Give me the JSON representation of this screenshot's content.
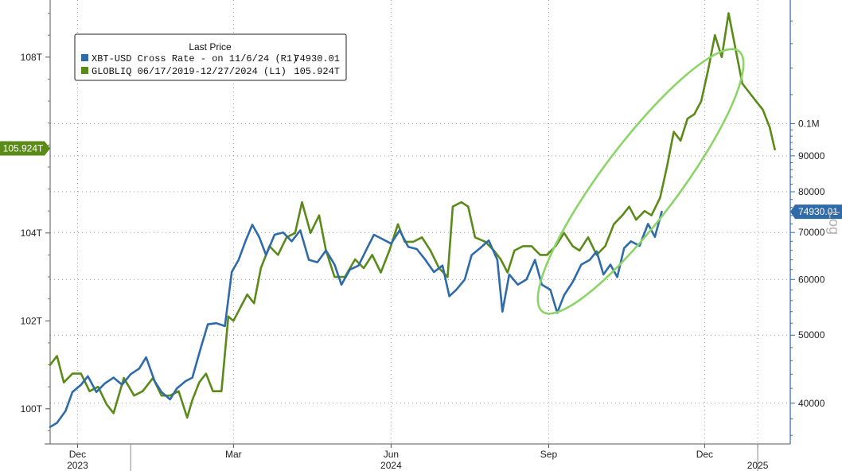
{
  "chart_data": {
    "type": "line",
    "legend": {
      "title": "Last Price",
      "placement": "top-left",
      "entries": [
        {
          "label": "XBT-USD Cross Rate -  on 11/6/24  (R1)",
          "value": "74930.01",
          "color": "#2f6ba8"
        },
        {
          "label": "GLOBLIQ 06/17/2019-12/27/2024   (L1)",
          "value": "105.924T",
          "color": "#5a8a18"
        }
      ]
    },
    "x_axis": {
      "labels": [
        {
          "month": "Dec",
          "year": "2023",
          "date": "2023-12-01"
        },
        {
          "month": "Mar",
          "year": "",
          "date": "2024-03-01"
        },
        {
          "month": "Jun",
          "year": "2024",
          "date": "2024-06-01"
        },
        {
          "month": "Sep",
          "year": "",
          "date": "2024-09-01"
        },
        {
          "month": "Dec",
          "year": "",
          "date": "2024-12-01"
        },
        {
          "month": "",
          "year": "2025",
          "date": "2025-01-01"
        }
      ],
      "range": [
        "2023-11-15",
        "2025-01-20"
      ]
    },
    "y_left": {
      "range": [
        99.2,
        109.3
      ],
      "ticks": [
        {
          "value": 100,
          "label": "100T"
        },
        {
          "value": 102,
          "label": "102T"
        },
        {
          "value": 104,
          "label": "104T"
        },
        {
          "value": 108,
          "label": "108T"
        }
      ]
    },
    "y_right": {
      "scale": "log",
      "scale_label": "Log",
      "range": [
        35000,
        150000
      ],
      "ticks": [
        {
          "value": 40000,
          "label": "40000"
        },
        {
          "value": 50000,
          "label": "50000"
        },
        {
          "value": 60000,
          "label": "60000"
        },
        {
          "value": 70000,
          "label": "70000"
        },
        {
          "value": 80000,
          "label": "80000"
        },
        {
          "value": 90000,
          "label": "90000"
        },
        {
          "value": 100000,
          "label": "0.1M"
        }
      ]
    },
    "grid": true,
    "last_value_tags": [
      {
        "series": "GLOBLIQ",
        "label": "105.924T",
        "value": 105.924,
        "axis": "left",
        "color": "#5a8a18"
      },
      {
        "series": "XBT-USD",
        "label": "74930.01",
        "value": 74930.01,
        "axis": "right",
        "color": "#2f6ba8"
      }
    ],
    "series": [
      {
        "name": "GLOBLIQ 06/17/2019-12/27/2024",
        "axis": "left",
        "color": "#5a8a18",
        "points": [
          [
            "2023-11-15",
            101.0
          ],
          [
            "2023-11-19",
            101.2
          ],
          [
            "2023-11-23",
            100.6
          ],
          [
            "2023-11-28",
            100.8
          ],
          [
            "2023-12-03",
            100.8
          ],
          [
            "2023-12-08",
            100.4
          ],
          [
            "2023-12-13",
            100.5
          ],
          [
            "2023-12-18",
            100.1
          ],
          [
            "2023-12-22",
            99.9
          ],
          [
            "2023-12-28",
            100.7
          ],
          [
            "2024-01-03",
            100.3
          ],
          [
            "2024-01-08",
            100.4
          ],
          [
            "2024-01-14",
            100.7
          ],
          [
            "2024-01-19",
            100.3
          ],
          [
            "2024-01-24",
            100.3
          ],
          [
            "2024-01-29",
            100.4
          ],
          [
            "2024-02-03",
            99.8
          ],
          [
            "2024-02-06",
            100.2
          ],
          [
            "2024-02-10",
            100.6
          ],
          [
            "2024-02-14",
            100.8
          ],
          [
            "2024-02-18",
            100.4
          ],
          [
            "2024-02-23",
            100.4
          ],
          [
            "2024-02-27",
            102.1
          ],
          [
            "2024-03-01",
            102.0
          ],
          [
            "2024-03-05",
            102.3
          ],
          [
            "2024-03-09",
            102.6
          ],
          [
            "2024-03-13",
            102.4
          ],
          [
            "2024-03-17",
            103.2
          ],
          [
            "2024-03-22",
            103.7
          ],
          [
            "2024-03-27",
            103.5
          ],
          [
            "2024-04-01",
            103.9
          ],
          [
            "2024-04-06",
            104.0
          ],
          [
            "2024-04-10",
            104.7
          ],
          [
            "2024-04-15",
            104.0
          ],
          [
            "2024-04-20",
            104.4
          ],
          [
            "2024-04-24",
            103.6
          ],
          [
            "2024-04-29",
            103.0
          ],
          [
            "2024-05-05",
            103.0
          ],
          [
            "2024-05-11",
            103.4
          ],
          [
            "2024-05-16",
            103.2
          ],
          [
            "2024-05-21",
            103.5
          ],
          [
            "2024-05-26",
            103.1
          ],
          [
            "2024-05-31",
            103.6
          ],
          [
            "2024-06-05",
            104.2
          ],
          [
            "2024-06-09",
            103.8
          ],
          [
            "2024-06-14",
            103.8
          ],
          [
            "2024-06-19",
            103.9
          ],
          [
            "2024-06-24",
            103.6
          ],
          [
            "2024-06-29",
            103.2
          ],
          [
            "2024-07-04",
            103.0
          ],
          [
            "2024-07-07",
            104.6
          ],
          [
            "2024-07-12",
            104.7
          ],
          [
            "2024-07-16",
            104.6
          ],
          [
            "2024-07-20",
            103.9
          ],
          [
            "2024-07-26",
            103.8
          ],
          [
            "2024-07-31",
            103.6
          ],
          [
            "2024-08-04",
            103.4
          ],
          [
            "2024-08-08",
            103.1
          ],
          [
            "2024-08-12",
            103.6
          ],
          [
            "2024-08-17",
            103.7
          ],
          [
            "2024-08-22",
            103.7
          ],
          [
            "2024-08-27",
            103.5
          ],
          [
            "2024-08-31",
            103.5
          ],
          [
            "2024-09-05",
            103.7
          ],
          [
            "2024-09-10",
            104.0
          ],
          [
            "2024-09-15",
            103.7
          ],
          [
            "2024-09-19",
            103.6
          ],
          [
            "2024-09-24",
            103.9
          ],
          [
            "2024-09-29",
            103.5
          ],
          [
            "2024-10-04",
            103.7
          ],
          [
            "2024-10-09",
            104.2
          ],
          [
            "2024-10-14",
            104.4
          ],
          [
            "2024-10-18",
            104.6
          ],
          [
            "2024-10-22",
            104.3
          ],
          [
            "2024-10-27",
            104.5
          ],
          [
            "2024-10-31",
            104.4
          ],
          [
            "2024-11-05",
            104.8
          ],
          [
            "2024-11-09",
            105.5
          ],
          [
            "2024-11-13",
            106.3
          ],
          [
            "2024-11-17",
            106.1
          ],
          [
            "2024-11-21",
            106.6
          ],
          [
            "2024-11-25",
            106.7
          ],
          [
            "2024-11-29",
            107.0
          ],
          [
            "2024-12-03",
            107.7
          ],
          [
            "2024-12-07",
            108.5
          ],
          [
            "2024-12-11",
            108.0
          ],
          [
            "2024-12-15",
            109.0
          ],
          [
            "2024-12-19",
            108.2
          ],
          [
            "2024-12-23",
            107.4
          ],
          [
            "2024-12-27",
            107.2
          ],
          [
            "2024-12-31",
            107.0
          ],
          [
            "2025-01-04",
            106.8
          ],
          [
            "2025-01-08",
            106.4
          ],
          [
            "2025-01-11",
            105.9
          ]
        ]
      },
      {
        "name": "XBT-USD Cross Rate",
        "axis": "right",
        "color": "#2f6ba8",
        "points": [
          [
            "2023-11-15",
            37000
          ],
          [
            "2023-11-19",
            37500
          ],
          [
            "2023-11-24",
            39000
          ],
          [
            "2023-11-28",
            41500
          ],
          [
            "2023-12-03",
            42500
          ],
          [
            "2023-12-07",
            43700
          ],
          [
            "2023-12-12",
            41500
          ],
          [
            "2023-12-17",
            42700
          ],
          [
            "2023-12-22",
            43500
          ],
          [
            "2023-12-27",
            42500
          ],
          [
            "2024-01-01",
            44000
          ],
          [
            "2024-01-06",
            44800
          ],
          [
            "2024-01-10",
            46500
          ],
          [
            "2024-01-15",
            43000
          ],
          [
            "2024-01-19",
            41500
          ],
          [
            "2024-01-24",
            40500
          ],
          [
            "2024-01-28",
            42000
          ],
          [
            "2024-02-02",
            43000
          ],
          [
            "2024-02-06",
            43500
          ],
          [
            "2024-02-11",
            48000
          ],
          [
            "2024-02-15",
            51800
          ],
          [
            "2024-02-20",
            52000
          ],
          [
            "2024-02-25",
            51500
          ],
          [
            "2024-02-29",
            61500
          ],
          [
            "2024-03-04",
            64000
          ],
          [
            "2024-03-08",
            68000
          ],
          [
            "2024-03-12",
            71800
          ],
          [
            "2024-03-16",
            69000
          ],
          [
            "2024-03-20",
            65000
          ],
          [
            "2024-03-25",
            69500
          ],
          [
            "2024-03-30",
            70000
          ],
          [
            "2024-04-04",
            68000
          ],
          [
            "2024-04-09",
            70500
          ],
          [
            "2024-04-14",
            64000
          ],
          [
            "2024-04-19",
            63500
          ],
          [
            "2024-04-24",
            66000
          ],
          [
            "2024-04-29",
            63000
          ],
          [
            "2024-05-03",
            59000
          ],
          [
            "2024-05-08",
            62000
          ],
          [
            "2024-05-13",
            62800
          ],
          [
            "2024-05-18",
            66500
          ],
          [
            "2024-05-22",
            69500
          ],
          [
            "2024-05-27",
            68500
          ],
          [
            "2024-06-01",
            67500
          ],
          [
            "2024-06-06",
            70500
          ],
          [
            "2024-06-11",
            66800
          ],
          [
            "2024-06-16",
            66300
          ],
          [
            "2024-06-21",
            64000
          ],
          [
            "2024-06-26",
            61500
          ],
          [
            "2024-07-01",
            62800
          ],
          [
            "2024-07-05",
            56800
          ],
          [
            "2024-07-09",
            58000
          ],
          [
            "2024-07-14",
            60000
          ],
          [
            "2024-07-18",
            65000
          ],
          [
            "2024-07-23",
            66500
          ],
          [
            "2024-07-28",
            68200
          ],
          [
            "2024-08-02",
            64000
          ],
          [
            "2024-08-05",
            54000
          ],
          [
            "2024-08-09",
            61000
          ],
          [
            "2024-08-14",
            59000
          ],
          [
            "2024-08-19",
            60000
          ],
          [
            "2024-08-24",
            64000
          ],
          [
            "2024-08-28",
            59000
          ],
          [
            "2024-09-02",
            58000
          ],
          [
            "2024-09-06",
            53800
          ],
          [
            "2024-09-10",
            57000
          ],
          [
            "2024-09-15",
            59500
          ],
          [
            "2024-09-20",
            63000
          ],
          [
            "2024-09-25",
            64000
          ],
          [
            "2024-09-29",
            65800
          ],
          [
            "2024-10-03",
            61000
          ],
          [
            "2024-10-07",
            63000
          ],
          [
            "2024-10-11",
            60500
          ],
          [
            "2024-10-15",
            66500
          ],
          [
            "2024-10-19",
            68000
          ],
          [
            "2024-10-24",
            67000
          ],
          [
            "2024-10-29",
            72000
          ],
          [
            "2024-11-02",
            69000
          ],
          [
            "2024-11-06",
            74930
          ]
        ]
      }
    ]
  }
}
